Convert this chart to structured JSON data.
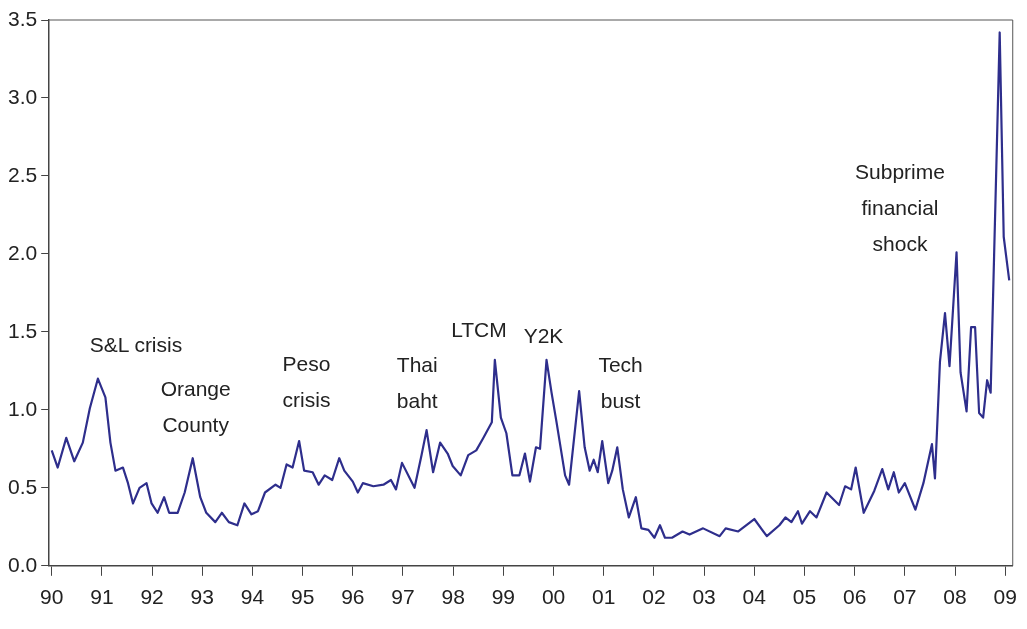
{
  "chart_data": {
    "type": "line",
    "x": [
      1990.0,
      1990.12,
      1990.29,
      1990.45,
      1990.62,
      1990.76,
      1990.92,
      1991.07,
      1991.17,
      1991.27,
      1991.42,
      1991.52,
      1991.62,
      1991.75,
      1991.89,
      1991.99,
      1992.11,
      1992.24,
      1992.34,
      1992.51,
      1992.65,
      1992.81,
      1992.96,
      1993.08,
      1993.26,
      1993.39,
      1993.53,
      1993.7,
      1993.84,
      1993.98,
      1994.11,
      1994.25,
      1994.46,
      1994.56,
      1994.68,
      1994.8,
      1994.93,
      1995.03,
      1995.2,
      1995.32,
      1995.44,
      1995.59,
      1995.73,
      1995.83,
      1996.0,
      1996.1,
      1996.2,
      1996.41,
      1996.61,
      1996.76,
      1996.86,
      1996.98,
      1997.23,
      1997.37,
      1997.47,
      1997.6,
      1997.74,
      1997.89,
      1997.99,
      1998.15,
      1998.3,
      1998.46,
      1998.6,
      1998.77,
      1998.83,
      1998.95,
      1999.06,
      1999.18,
      1999.32,
      1999.43,
      1999.53,
      1999.65,
      1999.73,
      1999.86,
      1999.96,
      2000.06,
      2000.23,
      2000.31,
      2000.51,
      2000.62,
      2000.72,
      2000.8,
      2000.88,
      2000.97,
      2001.09,
      2001.17,
      2001.27,
      2001.38,
      2001.5,
      2001.64,
      2001.75,
      2001.89,
      2002.01,
      2002.12,
      2002.22,
      2002.36,
      2002.57,
      2002.71,
      2002.98,
      2003.31,
      2003.43,
      2003.68,
      2004.0,
      2004.25,
      2004.5,
      2004.62,
      2004.74,
      2004.87,
      2004.95,
      2005.11,
      2005.24,
      2005.44,
      2005.69,
      2005.81,
      2005.93,
      2006.02,
      2006.18,
      2006.39,
      2006.55,
      2006.67,
      2006.78,
      2006.88,
      2007.0,
      2007.21,
      2007.37,
      2007.54,
      2007.6,
      2007.7,
      2007.8,
      2007.89,
      2008.03,
      2008.11,
      2008.23,
      2008.32,
      2008.4,
      2008.48,
      2008.56,
      2008.64,
      2008.71,
      2008.81,
      2008.89,
      2008.97,
      2009.08
    ],
    "series": [
      {
        "color": "#2e2e8c",
        "values": [
          0.74,
          0.63,
          0.82,
          0.67,
          0.79,
          1.01,
          1.2,
          1.08,
          0.79,
          0.61,
          0.63,
          0.53,
          0.4,
          0.5,
          0.53,
          0.4,
          0.34,
          0.44,
          0.34,
          0.34,
          0.47,
          0.69,
          0.44,
          0.34,
          0.28,
          0.34,
          0.28,
          0.26,
          0.4,
          0.33,
          0.35,
          0.47,
          0.52,
          0.5,
          0.65,
          0.63,
          0.8,
          0.61,
          0.6,
          0.52,
          0.58,
          0.55,
          0.69,
          0.61,
          0.54,
          0.47,
          0.53,
          0.51,
          0.52,
          0.55,
          0.49,
          0.66,
          0.5,
          0.71,
          0.87,
          0.6,
          0.79,
          0.72,
          0.64,
          0.58,
          0.71,
          0.74,
          0.82,
          0.92,
          1.32,
          0.95,
          0.85,
          0.58,
          0.58,
          0.72,
          0.54,
          0.76,
          0.75,
          1.32,
          1.11,
          0.92,
          0.58,
          0.52,
          1.12,
          0.76,
          0.61,
          0.68,
          0.6,
          0.8,
          0.53,
          0.61,
          0.76,
          0.49,
          0.31,
          0.44,
          0.24,
          0.23,
          0.18,
          0.26,
          0.18,
          0.18,
          0.22,
          0.2,
          0.24,
          0.19,
          0.24,
          0.22,
          0.3,
          0.19,
          0.26,
          0.31,
          0.28,
          0.35,
          0.27,
          0.35,
          0.31,
          0.47,
          0.39,
          0.51,
          0.49,
          0.63,
          0.34,
          0.48,
          0.62,
          0.49,
          0.6,
          0.47,
          0.53,
          0.36,
          0.53,
          0.78,
          0.56,
          1.31,
          1.62,
          1.28,
          2.01,
          1.24,
          0.99,
          1.53,
          1.53,
          0.98,
          0.95,
          1.19,
          1.11,
          2.39,
          3.42,
          2.11,
          1.83
        ]
      }
    ],
    "xlim": [
      1989.95,
      2009.15
    ],
    "xticks": [
      {
        "value": 1990,
        "label": "90"
      },
      {
        "value": 1991,
        "label": "91"
      },
      {
        "value": 1992,
        "label": "92"
      },
      {
        "value": 1993,
        "label": "93"
      },
      {
        "value": 1994,
        "label": "94"
      },
      {
        "value": 1995,
        "label": "95"
      },
      {
        "value": 1996,
        "label": "96"
      },
      {
        "value": 1997,
        "label": "97"
      },
      {
        "value": 1998,
        "label": "98"
      },
      {
        "value": 1999,
        "label": "99"
      },
      {
        "value": 2000,
        "label": "00"
      },
      {
        "value": 2001,
        "label": "01"
      },
      {
        "value": 2002,
        "label": "02"
      },
      {
        "value": 2003,
        "label": "03"
      },
      {
        "value": 2004,
        "label": "04"
      },
      {
        "value": 2005,
        "label": "05"
      },
      {
        "value": 2006,
        "label": "06"
      },
      {
        "value": 2007,
        "label": "07"
      },
      {
        "value": 2008,
        "label": "08"
      },
      {
        "value": 2009,
        "label": "09"
      }
    ],
    "ylim": [
      0,
      3.5
    ],
    "yticks": [
      {
        "value": 0,
        "label": "0.0"
      },
      {
        "value": 0.5,
        "label": "0.5"
      },
      {
        "value": 1,
        "label": "1.0"
      },
      {
        "value": 1.5,
        "label": "1.5"
      },
      {
        "value": 2,
        "label": "2.0"
      },
      {
        "value": 2.5,
        "label": "2.5"
      },
      {
        "value": 3,
        "label": "3.0"
      },
      {
        "value": 3.5,
        "label": "3.5"
      }
    ],
    "grid": false,
    "legend": false,
    "marker": "none",
    "line_style": "solid",
    "annotations": [
      "S&L crisis",
      "Orange\nCounty",
      "Peso\ncrisis",
      "Thai\nbaht",
      "LTCM",
      "Y2K",
      "Tech\nbust",
      "Subprime\nfinancial\nshock"
    ]
  }
}
